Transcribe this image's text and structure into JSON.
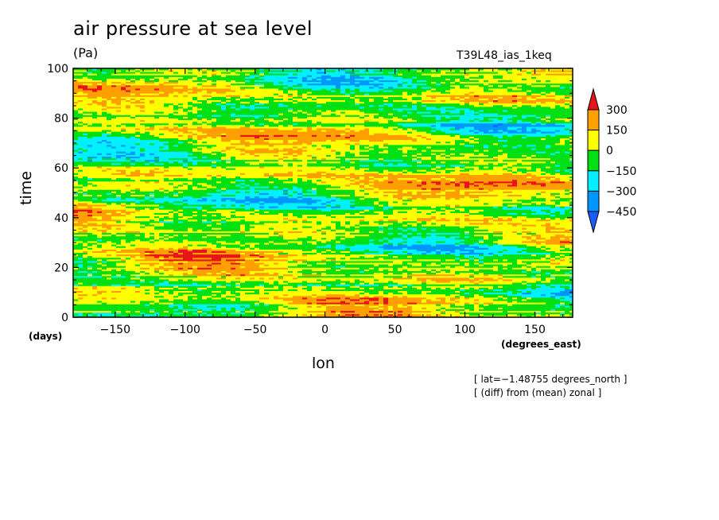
{
  "chart_data": {
    "type": "heatmap",
    "title": "air pressure at sea level",
    "units": "(Pa)",
    "run_label": "T39L48_ias_1keq",
    "xlabel": "lon",
    "ylabel": "time",
    "x_units": "(degrees_east)",
    "y_units": "(days)",
    "xlim": [
      -180,
      177
    ],
    "ylim": [
      0,
      100
    ],
    "x_ticks": [
      -150,
      -100,
      -50,
      0,
      50,
      100,
      150
    ],
    "x_tick_labels": [
      "−150",
      "−100",
      "−50",
      "0",
      "50",
      "100",
      "150"
    ],
    "y_ticks": [
      0,
      20,
      40,
      60,
      80,
      100
    ],
    "y_tick_labels": [
      "0",
      "20",
      "40",
      "60",
      "80",
      "100"
    ],
    "colorbar": {
      "levels": [
        300,
        150,
        0,
        -150,
        -300,
        -450
      ],
      "level_labels": [
        "300",
        "150",
        "0",
        "−150",
        "−300",
        "−450"
      ],
      "colors": [
        "#e8141c",
        "#ff9f00",
        "#ffff00",
        "#00e014",
        "#00f0ff",
        "#0096ff",
        "#1a5cff"
      ],
      "extend": "both"
    },
    "notes": [
      "[ lat=−1.48755 degrees_north ]",
      "[ (diff) from (mean) zonal ]"
    ]
  }
}
